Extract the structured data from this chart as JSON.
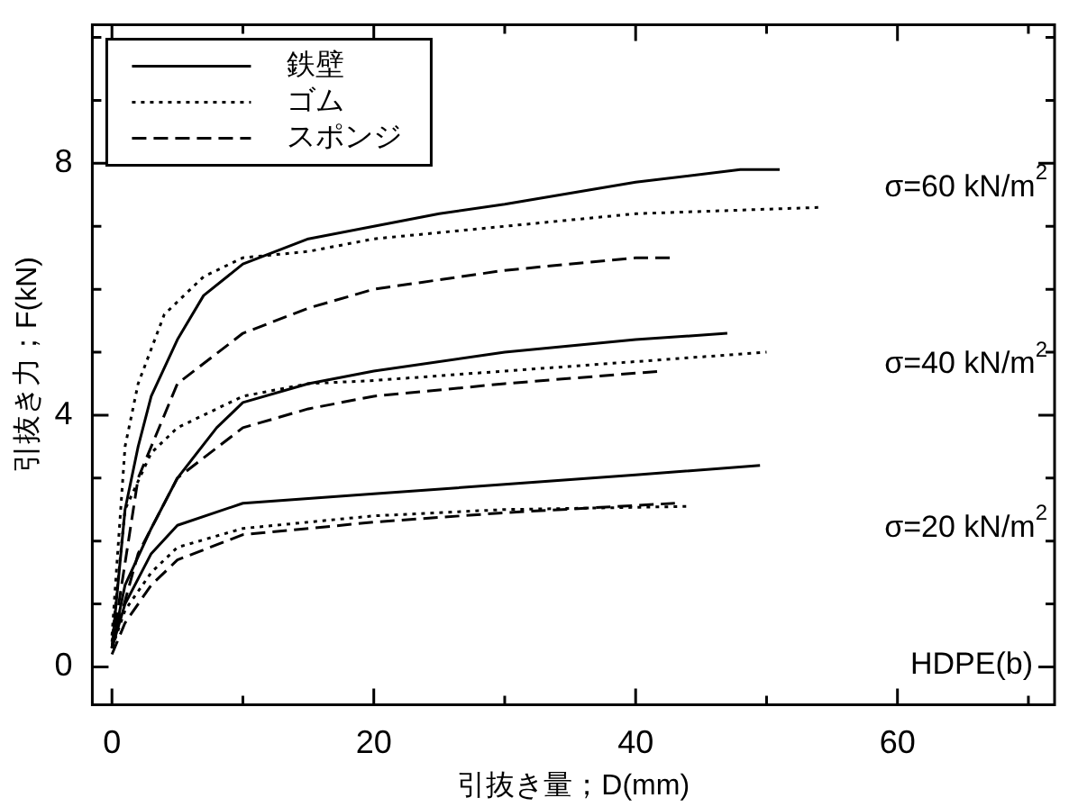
{
  "chart_data": {
    "type": "line",
    "xlabel": "引抜き量；D(mm)",
    "ylabel": "引抜き力；F(kN)",
    "xlim": [
      -1.5,
      72
    ],
    "ylim": [
      -0.6,
      10.2
    ],
    "xticks": [
      0,
      {
        "value": 10,
        "label": null
      },
      20,
      {
        "value": 30,
        "label": null
      },
      40,
      {
        "value": 50,
        "label": null
      },
      60,
      {
        "value": 70,
        "label": null
      }
    ],
    "yticks": [
      0,
      {
        "value": 1,
        "label": null
      },
      {
        "value": 2,
        "label": null
      },
      {
        "value": 3,
        "label": null
      },
      4,
      {
        "value": 5,
        "label": null
      },
      {
        "value": 6,
        "label": null
      },
      {
        "value": 7,
        "label": null
      },
      8,
      {
        "value": 9,
        "label": null
      },
      {
        "value": 10,
        "label": null
      }
    ],
    "grid": false,
    "legend": "top left",
    "marker": "none",
    "series": [
      {
        "name": "鉄壁",
        "color": "#000000",
        "line_style": "solid",
        "x": [
          0,
          1,
          2,
          3,
          5,
          7,
          10,
          15,
          20,
          25,
          30,
          40,
          48,
          51
        ],
        "values": [
          0.3,
          2.5,
          3.5,
          4.3,
          5.2,
          5.9,
          6.4,
          6.8,
          7.0,
          7.2,
          7.35,
          7.7,
          7.9,
          7.9
        ]
      },
      {
        "name": "ゴム",
        "color": "#000000",
        "line_style": "dotted",
        "x": [
          0,
          1,
          2,
          4,
          7,
          10,
          15,
          20,
          30,
          40,
          54
        ],
        "values": [
          0.5,
          3.5,
          4.5,
          5.6,
          6.2,
          6.5,
          6.6,
          6.8,
          7.0,
          7.2,
          7.3
        ]
      },
      {
        "name": "スポンジ",
        "color": "#000000",
        "line_style": "dashed",
        "x": [
          0,
          2,
          5,
          10,
          15,
          20,
          30,
          40,
          43
        ],
        "values": [
          0.3,
          3.0,
          4.5,
          5.3,
          5.7,
          6.0,
          6.3,
          6.5,
          6.5
        ]
      },
      {
        "color": "#000000",
        "line_style": "solid",
        "x": [
          0,
          1,
          3,
          5,
          8,
          10,
          15,
          20,
          30,
          40,
          47
        ],
        "values": [
          0.3,
          1.3,
          2.2,
          3.0,
          3.8,
          4.2,
          4.5,
          4.7,
          5.0,
          5.2,
          5.3
        ]
      },
      {
        "color": "#000000",
        "line_style": "dotted",
        "x": [
          0,
          1,
          3,
          5,
          10,
          15,
          20,
          30,
          40,
          50
        ],
        "values": [
          0.4,
          2.5,
          3.4,
          3.8,
          4.3,
          4.5,
          4.55,
          4.7,
          4.85,
          5.0
        ]
      },
      {
        "color": "#000000",
        "line_style": "dashed",
        "x": [
          0,
          2,
          5,
          10,
          15,
          20,
          30,
          42
        ],
        "values": [
          0.3,
          1.8,
          3.0,
          3.8,
          4.1,
          4.3,
          4.5,
          4.7
        ]
      },
      {
        "color": "#000000",
        "line_style": "solid",
        "x": [
          0,
          1,
          3,
          5,
          10,
          20,
          30,
          40,
          49.5
        ],
        "values": [
          0.3,
          1.0,
          1.8,
          2.25,
          2.6,
          2.75,
          2.9,
          3.05,
          3.2
        ]
      },
      {
        "color": "#000000",
        "line_style": "dotted",
        "x": [
          0,
          1,
          3,
          5,
          10,
          20,
          30,
          44
        ],
        "values": [
          0.3,
          0.9,
          1.5,
          1.9,
          2.2,
          2.4,
          2.5,
          2.55
        ]
      },
      {
        "color": "#000000",
        "line_style": "dashed",
        "x": [
          0,
          1,
          3,
          5,
          10,
          20,
          30,
          43
        ],
        "values": [
          0.2,
          0.7,
          1.3,
          1.7,
          2.1,
          2.3,
          2.45,
          2.6
        ]
      }
    ],
    "annotations": [
      "σ=60 kN/m$^{2}$",
      "σ=40 kN/m$^{2}$",
      "σ=20 kN/m$^{2}$",
      "HDPE(b)"
    ]
  }
}
